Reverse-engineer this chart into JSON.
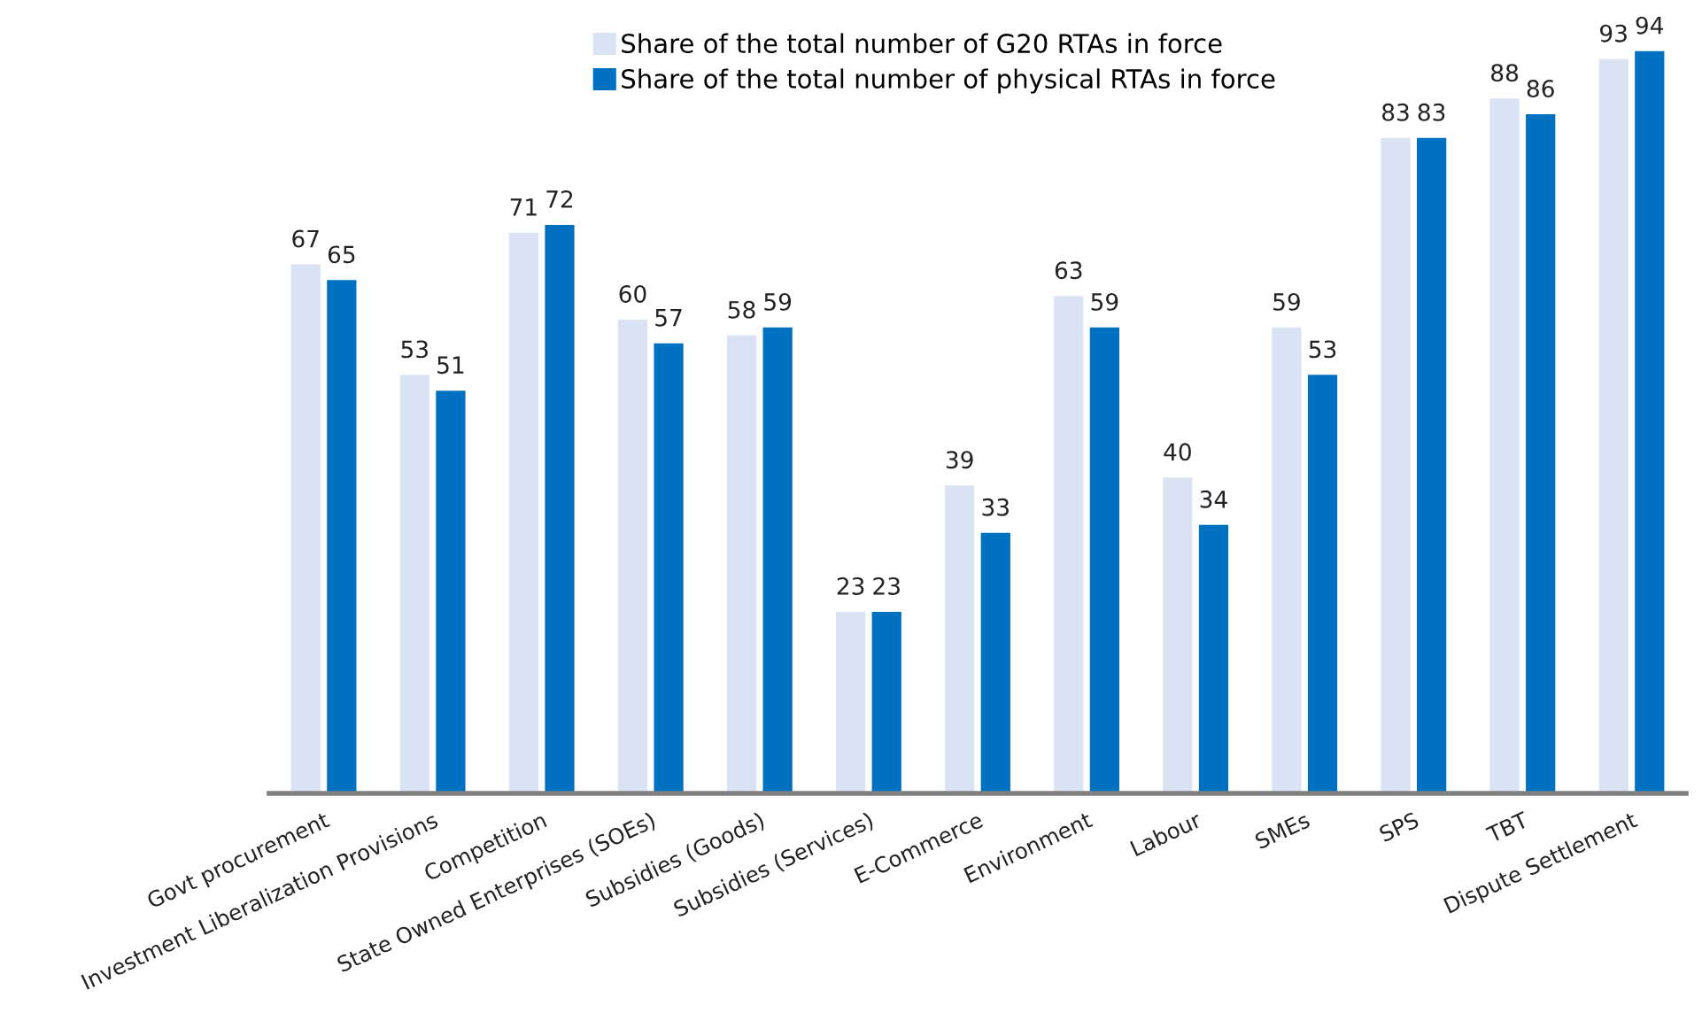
{
  "chart_data": {
    "type": "bar",
    "categories": [
      "Govt procurement",
      "Investment Liberalization Provisions",
      "Competition",
      "State Owned Enterprises (SOEs)",
      "Subsidies (Goods)",
      "Subsidies (Services)",
      "E-Commerce",
      "Environment",
      "Labour",
      "SMEs",
      "SPS",
      "TBT",
      "Dispute Settlement"
    ],
    "series": [
      {
        "name": "Share of the total number of G20 RTAs in force",
        "color": "#dae3f3",
        "values": [
          67,
          53,
          71,
          60,
          58,
          23,
          39,
          63,
          40,
          59,
          83,
          88,
          93
        ]
      },
      {
        "name": "Share of the total number of physical RTAs in force",
        "color": "#0070c0",
        "values": [
          65,
          51,
          72,
          57,
          59,
          23,
          33,
          59,
          34,
          53,
          83,
          86,
          94
        ]
      }
    ],
    "data_labels": true,
    "legend": "top",
    "tick_labels": "x"
  }
}
